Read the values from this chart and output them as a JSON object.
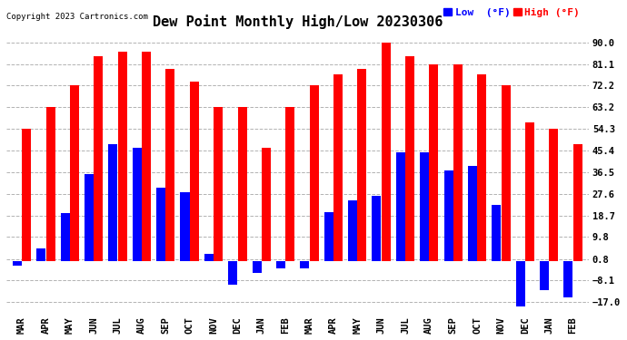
{
  "title": "Dew Point Monthly High/Low 20230306",
  "copyright": "Copyright 2023 Cartronics.com",
  "months": [
    "MAR",
    "APR",
    "MAY",
    "JUN",
    "JUL",
    "AUG",
    "SEP",
    "OCT",
    "NOV",
    "DEC",
    "JAN",
    "FEB",
    "MAR",
    "APR",
    "MAY",
    "JUN",
    "JUL",
    "AUG",
    "SEP",
    "OCT",
    "NOV",
    "DEC",
    "JAN",
    "FEB"
  ],
  "high": [
    54.3,
    63.2,
    72.2,
    84.2,
    86.0,
    86.0,
    79.0,
    74.0,
    63.2,
    63.2,
    46.4,
    63.2,
    72.2,
    77.0,
    79.0,
    90.0,
    84.2,
    81.1,
    81.1,
    77.0,
    72.2,
    57.0,
    54.3,
    48.2
  ],
  "low": [
    -2.0,
    5.0,
    19.8,
    35.6,
    48.2,
    46.4,
    30.2,
    28.4,
    3.0,
    -10.0,
    -5.0,
    -3.0,
    -3.0,
    20.0,
    24.8,
    26.6,
    44.6,
    44.6,
    37.4,
    39.2,
    23.0,
    -19.0,
    -12.0,
    -15.0
  ],
  "high_color": "#FF0000",
  "low_color": "#0000FF",
  "background_color": "#FFFFFF",
  "plot_bg_color": "#FFFFFF",
  "grid_color": "#AAAAAA",
  "yticks": [
    -17.0,
    -8.1,
    0.8,
    9.8,
    18.7,
    27.6,
    36.5,
    45.4,
    54.3,
    63.2,
    72.2,
    81.1,
    90.0
  ],
  "ylim": [
    -22,
    94
  ],
  "title_fontsize": 11,
  "tick_fontsize": 7.5,
  "legend_fontsize": 8
}
